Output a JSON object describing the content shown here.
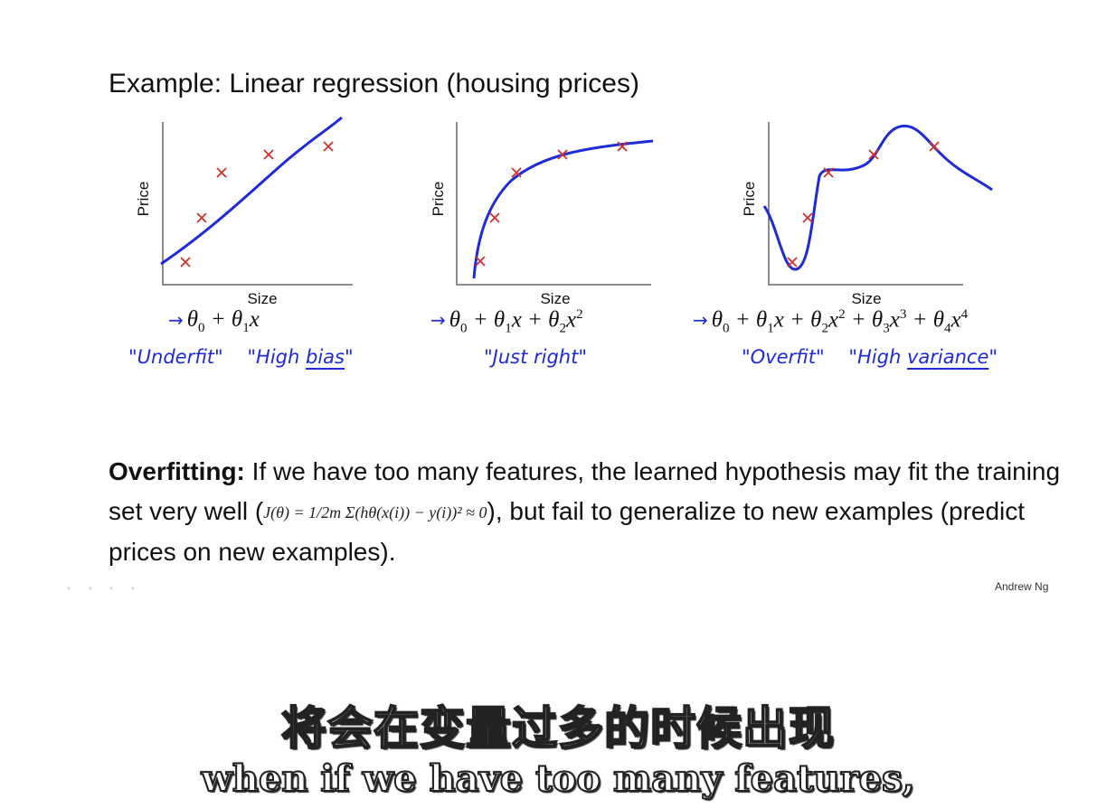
{
  "slide": {
    "title": "Example: Linear regression (housing prices)",
    "credit": "Andrew Ng"
  },
  "colors": {
    "curve": "#1f2ad8",
    "marker": "#d2302c",
    "text": "#111111"
  },
  "plots": [
    {
      "xlabel": "Size",
      "ylabel": "Price",
      "formula": [
        "θ",
        "0",
        " + θ",
        "1",
        "x"
      ],
      "note_a": "\"Underfit\"",
      "note_b": "\"High ",
      "note_b_ul": "bias",
      "note_b_end": "\""
    },
    {
      "xlabel": "Size",
      "ylabel": "Price",
      "note_a": "\"Just right\""
    },
    {
      "xlabel": "Size",
      "ylabel": "Price",
      "note_a": "\"Overfit\"",
      "note_b": "\"High ",
      "note_b_ul": "variance",
      "note_b_end": "\""
    }
  ],
  "overfitting": {
    "term": "Overfitting:",
    "text1": " If we have too many features, the learned hypothesis may fit the training set very well (",
    "formula": "J(θ) = 1/2m Σ(hθ(x(i)) − y(i))² ≈ 0",
    "text2": "), but fail to generalize to new examples (predict prices on new examples)."
  },
  "subtitles": {
    "chinese": "将会在变量过多的时候出现",
    "english": "when if we have too many features,"
  }
}
